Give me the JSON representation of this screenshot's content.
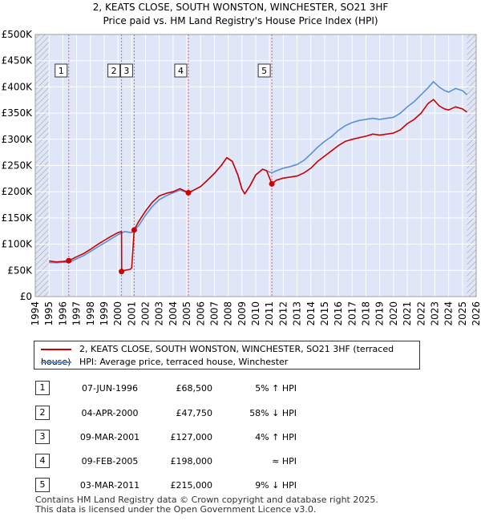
{
  "chart_data": {
    "type": "line",
    "title": "2, KEATS CLOSE, SOUTH WONSTON, WINCHESTER, SO21 3HF",
    "subtitle": "Price paid vs. HM Land Registry's House Price Index (HPI)",
    "xlim": [
      1994,
      2026
    ],
    "ylim": [
      0,
      500000
    ],
    "x_ticks": [
      1994,
      1995,
      1996,
      1997,
      1998,
      1999,
      2000,
      2001,
      2002,
      2003,
      2004,
      2005,
      2006,
      2007,
      2008,
      2009,
      2010,
      2011,
      2012,
      2013,
      2014,
      2015,
      2016,
      2017,
      2018,
      2019,
      2020,
      2021,
      2022,
      2023,
      2024,
      2025,
      2026
    ],
    "y_ticks": [
      {
        "value": 0,
        "label": "£0"
      },
      {
        "value": 50000,
        "label": "£50K"
      },
      {
        "value": 100000,
        "label": "£100K"
      },
      {
        "value": 150000,
        "label": "£150K"
      },
      {
        "value": 200000,
        "label": "£200K"
      },
      {
        "value": 250000,
        "label": "£250K"
      },
      {
        "value": 300000,
        "label": "£300K"
      },
      {
        "value": 350000,
        "label": "£350K"
      },
      {
        "value": 400000,
        "label": "£400K"
      },
      {
        "value": 450000,
        "label": "£450K"
      },
      {
        "value": 500000,
        "label": "£500K"
      }
    ],
    "data_start": 1995.0,
    "data_end": 2025.33,
    "series": [
      {
        "name": "2, KEATS CLOSE, SOUTH WONSTON, WINCHESTER, SO21 3HF (terraced house)",
        "color": "#cc0000",
        "points": [
          [
            1995.0,
            68000
          ],
          [
            1995.5,
            66000
          ],
          [
            1996.0,
            67000
          ],
          [
            1996.43,
            68500
          ],
          [
            1997.0,
            76000
          ],
          [
            1997.5,
            82000
          ],
          [
            1998.0,
            90000
          ],
          [
            1998.5,
            99000
          ],
          [
            1999.0,
            107000
          ],
          [
            1999.5,
            115000
          ],
          [
            2000.0,
            122000
          ],
          [
            2000.26,
            124000
          ],
          [
            2000.27,
            47750
          ],
          [
            2000.5,
            50000
          ],
          [
            2000.9,
            52000
          ],
          [
            2001.0,
            55000
          ],
          [
            2001.18,
            127000
          ],
          [
            2001.5,
            143000
          ],
          [
            2002.0,
            163000
          ],
          [
            2002.5,
            180000
          ],
          [
            2003.0,
            192000
          ],
          [
            2003.5,
            197000
          ],
          [
            2004.0,
            200000
          ],
          [
            2004.5,
            206000
          ],
          [
            2005.11,
            198000
          ],
          [
            2005.5,
            203000
          ],
          [
            2006.0,
            210000
          ],
          [
            2006.5,
            222000
          ],
          [
            2007.0,
            235000
          ],
          [
            2007.5,
            250000
          ],
          [
            2007.9,
            265000
          ],
          [
            2008.3,
            258000
          ],
          [
            2008.7,
            232000
          ],
          [
            2009.0,
            205000
          ],
          [
            2009.2,
            196000
          ],
          [
            2009.6,
            212000
          ],
          [
            2010.0,
            232000
          ],
          [
            2010.5,
            243000
          ],
          [
            2010.8,
            240000
          ],
          [
            2011.17,
            215000
          ],
          [
            2011.5,
            222000
          ],
          [
            2012.0,
            226000
          ],
          [
            2012.5,
            228000
          ],
          [
            2013.0,
            230000
          ],
          [
            2013.5,
            236000
          ],
          [
            2014.0,
            245000
          ],
          [
            2014.5,
            258000
          ],
          [
            2015.0,
            268000
          ],
          [
            2015.5,
            278000
          ],
          [
            2016.0,
            288000
          ],
          [
            2016.5,
            296000
          ],
          [
            2017.0,
            300000
          ],
          [
            2017.5,
            303000
          ],
          [
            2018.0,
            306000
          ],
          [
            2018.5,
            310000
          ],
          [
            2019.0,
            308000
          ],
          [
            2019.5,
            310000
          ],
          [
            2020.0,
            312000
          ],
          [
            2020.5,
            318000
          ],
          [
            2021.0,
            330000
          ],
          [
            2021.5,
            338000
          ],
          [
            2022.0,
            350000
          ],
          [
            2022.5,
            368000
          ],
          [
            2022.9,
            376000
          ],
          [
            2023.3,
            364000
          ],
          [
            2023.7,
            358000
          ],
          [
            2024.0,
            356000
          ],
          [
            2024.5,
            362000
          ],
          [
            2025.0,
            358000
          ],
          [
            2025.33,
            352000
          ]
        ]
      },
      {
        "name": "HPI: Average price, terraced house, Winchester",
        "color": "#5b8fd6",
        "points": [
          [
            1995.0,
            65000
          ],
          [
            1995.5,
            64500
          ],
          [
            1996.0,
            65500
          ],
          [
            1996.43,
            65200
          ],
          [
            1997.0,
            72000
          ],
          [
            1997.5,
            78000
          ],
          [
            1998.0,
            86000
          ],
          [
            1998.5,
            94000
          ],
          [
            1999.0,
            102000
          ],
          [
            1999.5,
            110000
          ],
          [
            2000.0,
            118000
          ],
          [
            2000.5,
            124000
          ],
          [
            2001.0,
            122000
          ],
          [
            2001.5,
            135000
          ],
          [
            2002.0,
            155000
          ],
          [
            2002.5,
            172000
          ],
          [
            2003.0,
            185000
          ],
          [
            2003.5,
            192000
          ],
          [
            2004.0,
            198000
          ],
          [
            2004.5,
            203000
          ],
          [
            2005.11,
            198000
          ],
          [
            2005.5,
            203000
          ],
          [
            2006.0,
            210000
          ],
          [
            2006.5,
            222000
          ],
          [
            2007.0,
            235000
          ],
          [
            2007.5,
            250000
          ],
          [
            2007.9,
            265000
          ],
          [
            2008.3,
            258000
          ],
          [
            2008.7,
            232000
          ],
          [
            2009.0,
            205000
          ],
          [
            2009.2,
            196000
          ],
          [
            2009.6,
            212000
          ],
          [
            2010.0,
            232000
          ],
          [
            2010.5,
            243000
          ],
          [
            2011.17,
            236000
          ],
          [
            2011.5,
            240000
          ],
          [
            2012.0,
            245000
          ],
          [
            2012.5,
            248000
          ],
          [
            2013.0,
            252000
          ],
          [
            2013.5,
            260000
          ],
          [
            2014.0,
            272000
          ],
          [
            2014.5,
            285000
          ],
          [
            2015.0,
            296000
          ],
          [
            2015.5,
            305000
          ],
          [
            2016.0,
            317000
          ],
          [
            2016.5,
            326000
          ],
          [
            2017.0,
            332000
          ],
          [
            2017.5,
            336000
          ],
          [
            2018.0,
            338000
          ],
          [
            2018.5,
            340000
          ],
          [
            2019.0,
            338000
          ],
          [
            2019.5,
            340000
          ],
          [
            2020.0,
            342000
          ],
          [
            2020.5,
            350000
          ],
          [
            2021.0,
            362000
          ],
          [
            2021.5,
            372000
          ],
          [
            2022.0,
            385000
          ],
          [
            2022.5,
            398000
          ],
          [
            2022.9,
            410000
          ],
          [
            2023.3,
            400000
          ],
          [
            2023.7,
            393000
          ],
          [
            2024.0,
            390000
          ],
          [
            2024.5,
            397000
          ],
          [
            2025.0,
            393000
          ],
          [
            2025.33,
            385000
          ]
        ]
      }
    ],
    "sales": [
      {
        "num": "1",
        "x": 1996.43,
        "price": 68500,
        "date": "07-JUN-1996",
        "price_label": "£68,500",
        "hpi": "5% ↑ HPI"
      },
      {
        "num": "2",
        "x": 2000.26,
        "price": 47750,
        "date": "04-APR-2000",
        "price_label": "£47,750",
        "hpi": "58% ↓ HPI"
      },
      {
        "num": "3",
        "x": 2001.18,
        "price": 127000,
        "date": "09-MAR-2001",
        "price_label": "£127,000",
        "hpi": "4% ↑ HPI"
      },
      {
        "num": "4",
        "x": 2005.11,
        "price": 198000,
        "date": "09-FEB-2005",
        "price_label": "£198,000",
        "hpi": "≈ HPI"
      },
      {
        "num": "5",
        "x": 2011.17,
        "price": 215000,
        "date": "03-MAR-2011",
        "price_label": "£215,000",
        "hpi": "9% ↓ HPI"
      }
    ],
    "colors": {
      "shade": "#dfe6f7",
      "grid": "#ffffff",
      "marker_line": "#e06060",
      "hatch": "#999999"
    }
  },
  "legend": {
    "property": "2, KEATS CLOSE, SOUTH WONSTON, WINCHESTER, SO21 3HF (terraced house)",
    "hpi": "HPI: Average price, terraced house, Winchester"
  },
  "footer": {
    "line1": "Contains HM Land Registry data © Crown copyright and database right 2025.",
    "line2": "This data is licensed under the Open Government Licence v3.0."
  }
}
